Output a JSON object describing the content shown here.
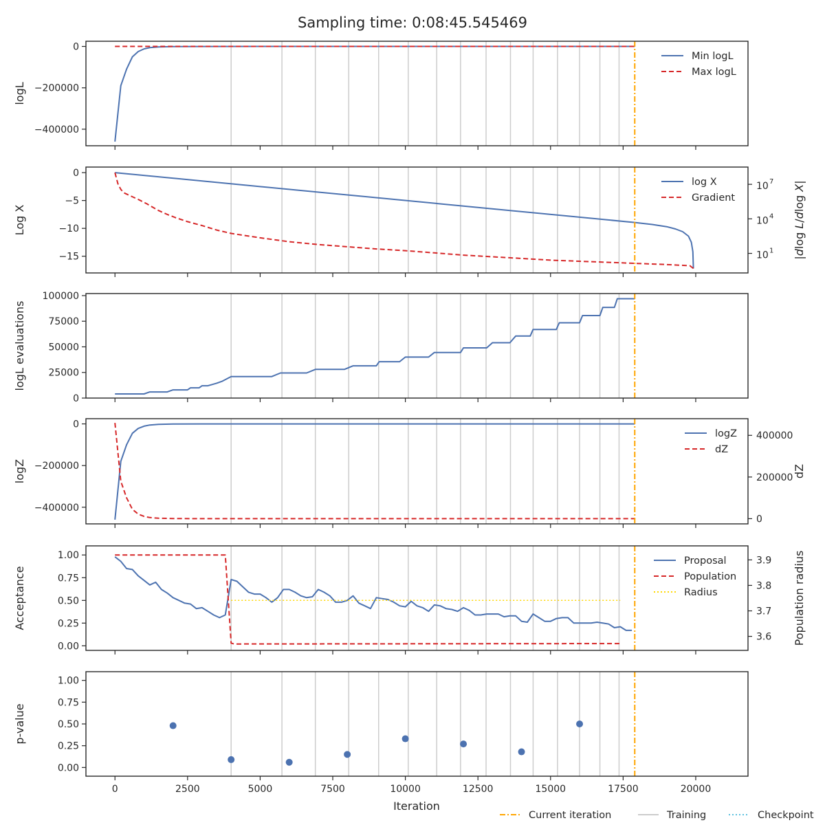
{
  "title": "Sampling time: 0:08:45.545469",
  "colors": {
    "blue": "#4c72b0",
    "red": "#d62728",
    "orange": "#ffa500",
    "grey": "#cccccc",
    "gold": "#ffd700",
    "checkpoint": "#5bc0de"
  },
  "chart_data": {
    "type": "line",
    "shared_x": {
      "label": "Iteration",
      "range": [
        -1000,
        21800
      ],
      "ticks": [
        "0",
        "2500",
        "5000",
        "7500",
        "10000",
        "12500",
        "15000",
        "17500",
        "20000"
      ]
    },
    "current_iteration": 17900,
    "training_iterations": [
      4000,
      5750,
      6900,
      8050,
      9080,
      10100,
      11080,
      11900,
      12780,
      13620,
      14400,
      15240,
      16000,
      16700,
      17360
    ],
    "figure_legend": [
      "Current iteration",
      "Training",
      "Checkpoint"
    ],
    "panels": [
      {
        "id": "logl",
        "ylabel": "logL",
        "ylim": [
          -480000,
          25000
        ],
        "yticks": [
          {
            "v": 0,
            "t": "0"
          },
          {
            "v": -200000,
            "t": "−200000"
          },
          {
            "v": -400000,
            "t": "−400000"
          }
        ],
        "legend": [
          "Min logL",
          "Max logL"
        ],
        "series": [
          {
            "name": "Min logL",
            "style": "solid",
            "color": "blue",
            "x": [
              0,
              200,
              400,
              600,
              800,
              1000,
              1200,
              1500,
              2000,
              3000,
              5000,
              10000,
              17900
            ],
            "y": [
              -460000,
              -190000,
              -110000,
              -50000,
              -25000,
              -12000,
              -6000,
              -2500,
              -800,
              -200,
              -60,
              -20,
              -10
            ]
          },
          {
            "name": "Max logL",
            "style": "dashed",
            "color": "red",
            "x": [
              0,
              17900
            ],
            "y": [
              -5,
              -5
            ]
          }
        ]
      },
      {
        "id": "logx",
        "ylabel": "Log X",
        "ylim": [
          -18,
          1
        ],
        "yticks": [
          {
            "v": 0,
            "t": "0"
          },
          {
            "v": -5,
            "t": "−5"
          },
          {
            "v": -10,
            "t": "−10"
          },
          {
            "v": -15,
            "t": "−15"
          }
        ],
        "y2label": "|dlog L/dlog X|",
        "y2ticks": [
          {
            "exp": 7,
            "t": "10"
          },
          {
            "exp": 4,
            "t": "10"
          },
          {
            "exp": 1,
            "t": "10"
          }
        ],
        "legend": [
          "log X",
          "Gradient"
        ],
        "series": [
          {
            "name": "log X",
            "style": "solid",
            "color": "blue",
            "x": [
              0,
              17900,
              18500,
              19000,
              19300,
              19550,
              19750,
              19850,
              19900,
              19920
            ],
            "y": [
              0,
              -8.95,
              -9.3,
              -9.7,
              -10.1,
              -10.6,
              -11.4,
              -12.5,
              -14.2,
              -17.2
            ]
          },
          {
            "name": "Gradient",
            "style": "dashed",
            "color": "red",
            "x": [
              0,
              100,
              200,
              300,
              500,
              800,
              1100,
              1300,
              1500,
              1800,
              2100,
              2500,
              3000,
              3500,
              4000,
              4500,
              5000,
              6000,
              7000,
              8000,
              9000,
              10000,
              11000,
              12000,
              13000,
              14000,
              15000,
              16000,
              17000,
              18000,
              19000,
              19800,
              19920
            ],
            "y": [
              0,
              -2.0,
              -3.0,
              -3.6,
              -4.1,
              -4.8,
              -5.6,
              -6.2,
              -6.8,
              -7.5,
              -8.1,
              -8.8,
              -9.5,
              -10.3,
              -10.9,
              -11.3,
              -11.7,
              -12.4,
              -12.9,
              -13.3,
              -13.7,
              -14.0,
              -14.4,
              -14.8,
              -15.1,
              -15.4,
              -15.7,
              -15.9,
              -16.1,
              -16.3,
              -16.5,
              -16.7,
              -17.2
            ]
          }
        ]
      },
      {
        "id": "evals",
        "ylabel": "logL evaluations",
        "ylim": [
          0,
          102000
        ],
        "yticks": [
          {
            "v": 0,
            "t": "0"
          },
          {
            "v": 25000,
            "t": "25000"
          },
          {
            "v": 50000,
            "t": "50000"
          },
          {
            "v": 75000,
            "t": "75000"
          },
          {
            "v": 100000,
            "t": "100000"
          }
        ],
        "legend": [],
        "series": [
          {
            "name": "",
            "style": "solid",
            "color": "blue",
            "x": [
              0,
              1000,
              1200,
              1800,
              2000,
              2500,
              2600,
              2900,
              3000,
              3200,
              3500,
              3700,
              4000,
              5400,
              5700,
              6600,
              6900,
              7900,
              8200,
              9000,
              9100,
              9800,
              10000,
              10800,
              11000,
              11900,
              12000,
              12800,
              13000,
              13600,
              13800,
              14300,
              14400,
              15200,
              15300,
              16000,
              16100,
              16700,
              16800,
              17200,
              17300,
              17900
            ],
            "y": [
              4000,
              4000,
              6000,
              6000,
              8000,
              8000,
              10000,
              10000,
              12000,
              12000,
              14500,
              16500,
              21000,
              21000,
              24500,
              24500,
              28000,
              28000,
              31500,
              31500,
              35500,
              35500,
              40000,
              40000,
              44500,
              44500,
              49000,
              49000,
              54000,
              54000,
              60500,
              60500,
              67000,
              67000,
              73500,
              73500,
              80500,
              80500,
              88500,
              88500,
              97000,
              97000
            ]
          }
        ]
      },
      {
        "id": "logz",
        "ylabel": "logZ",
        "ylim": [
          -480000,
          25000
        ],
        "yticks": [
          {
            "v": 0,
            "t": "0"
          },
          {
            "v": -200000,
            "t": "−200000"
          },
          {
            "v": -400000,
            "t": "−400000"
          }
        ],
        "y2label": "dZ",
        "y2lim": [
          -25000,
          480000
        ],
        "y2ticks": [
          {
            "v": 0,
            "t": "0"
          },
          {
            "v": 200000,
            "t": "200000"
          },
          {
            "v": 400000,
            "t": "400000"
          }
        ],
        "legend": [
          "logZ",
          "dZ"
        ],
        "series": [
          {
            "name": "logZ",
            "style": "solid",
            "color": "blue",
            "axis": "left",
            "x": [
              0,
              200,
              400,
              600,
              800,
              1000,
              1200,
              1500,
              2000,
              3000,
              5000,
              10000,
              17900
            ],
            "y": [
              -460000,
              -180000,
              -100000,
              -45000,
              -22000,
              -11000,
              -5500,
              -2200,
              -700,
              -200,
              -60,
              -20,
              -10
            ]
          },
          {
            "name": "dZ",
            "style": "dashed",
            "color": "red",
            "axis": "right",
            "x": [
              0,
              200,
              400,
              600,
              800,
              1000,
              1200,
              1500,
              2000,
              3000,
              5000,
              10000,
              17900
            ],
            "y": [
              460000,
              180000,
              100000,
              45000,
              22000,
              11000,
              5500,
              2200,
              700,
              200,
              60,
              20,
              10
            ]
          }
        ]
      },
      {
        "id": "acceptance",
        "ylabel": "Acceptance",
        "ylim": [
          -0.05,
          1.1
        ],
        "yticks": [
          {
            "v": 1.0,
            "t": "1.00"
          },
          {
            "v": 0.75,
            "t": "0.75"
          },
          {
            "v": 0.5,
            "t": "0.50"
          },
          {
            "v": 0.25,
            "t": "0.25"
          },
          {
            "v": 0.0,
            "t": "0.00"
          }
        ],
        "y2label": "Population radius",
        "y2lim": [
          3.545,
          3.955
        ],
        "y2ticks": [
          {
            "v": 3.9,
            "t": "3.9"
          },
          {
            "v": 3.8,
            "t": "3.8"
          },
          {
            "v": 3.7,
            "t": "3.7"
          },
          {
            "v": 3.6,
            "t": "3.6"
          }
        ],
        "legend": [
          "Proposal",
          "Population",
          "Radius"
        ],
        "series": [
          {
            "name": "Proposal",
            "style": "solid",
            "color": "blue",
            "axis": "left",
            "x": [
              0,
              200,
              400,
              600,
              800,
              1000,
              1200,
              1400,
              1600,
              1800,
              2000,
              2200,
              2400,
              2600,
              2800,
              3000,
              3200,
              3400,
              3600,
              3800,
              4000,
              4200,
              4400,
              4600,
              4800,
              5000,
              5200,
              5400,
              5600,
              5800,
              6000,
              6200,
              6400,
              6600,
              6800,
              7000,
              7200,
              7400,
              7600,
              7800,
              8000,
              8200,
              8400,
              8600,
              8800,
              9000,
              9200,
              9400,
              9600,
              9800,
              10000,
              10200,
              10400,
              10600,
              10800,
              11000,
              11200,
              11400,
              11600,
              11800,
              12000,
              12200,
              12400,
              12600,
              12800,
              13000,
              13200,
              13400,
              13600,
              13800,
              14000,
              14200,
              14400,
              14600,
              14800,
              15000,
              15200,
              15400,
              15600,
              15800,
              16000,
              16200,
              16400,
              16600,
              16800,
              17000,
              17200,
              17400,
              17600,
              17800
            ],
            "y": [
              0.98,
              0.93,
              0.85,
              0.84,
              0.77,
              0.72,
              0.67,
              0.7,
              0.62,
              0.58,
              0.53,
              0.5,
              0.47,
              0.46,
              0.41,
              0.42,
              0.38,
              0.34,
              0.31,
              0.34,
              0.73,
              0.71,
              0.65,
              0.59,
              0.57,
              0.57,
              0.53,
              0.48,
              0.53,
              0.62,
              0.62,
              0.59,
              0.55,
              0.53,
              0.54,
              0.62,
              0.59,
              0.55,
              0.48,
              0.48,
              0.5,
              0.55,
              0.47,
              0.44,
              0.41,
              0.53,
              0.52,
              0.51,
              0.48,
              0.44,
              0.43,
              0.49,
              0.44,
              0.42,
              0.38,
              0.45,
              0.44,
              0.41,
              0.4,
              0.38,
              0.42,
              0.39,
              0.34,
              0.34,
              0.35,
              0.35,
              0.35,
              0.32,
              0.33,
              0.33,
              0.27,
              0.26,
              0.35,
              0.31,
              0.27,
              0.27,
              0.3,
              0.31,
              0.31,
              0.25,
              0.25,
              0.25,
              0.25,
              0.26,
              0.25,
              0.24,
              0.2,
              0.21,
              0.17,
              0.17
            ]
          },
          {
            "name": "Population",
            "style": "dashed",
            "color": "red",
            "axis": "left",
            "x": [
              0,
              3800,
              4000,
              4100,
              17400
            ],
            "y": [
              1.0,
              1.0,
              0.03,
              0.02,
              0.025
            ]
          },
          {
            "name": "Radius",
            "style": "dotted",
            "color": "gold",
            "axis": "left",
            "x": [
              4000,
              17400
            ],
            "y": [
              0.5,
              0.5
            ]
          }
        ]
      },
      {
        "id": "pvalue",
        "ylabel": "p-value",
        "ylim": [
          -0.1,
          1.1
        ],
        "yticks": [
          {
            "v": 1.0,
            "t": "1.00"
          },
          {
            "v": 0.75,
            "t": "0.75"
          },
          {
            "v": 0.5,
            "t": "0.50"
          },
          {
            "v": 0.25,
            "t": "0.25"
          },
          {
            "v": 0.0,
            "t": "0.00"
          }
        ],
        "legend": [],
        "series": [
          {
            "name": "",
            "style": "scatter",
            "color": "blue",
            "x": [
              2000,
              4000,
              6000,
              8000,
              10000,
              12000,
              14000,
              16000
            ],
            "y": [
              0.48,
              0.09,
              0.06,
              0.15,
              0.33,
              0.27,
              0.18,
              0.5
            ]
          }
        ]
      }
    ]
  }
}
